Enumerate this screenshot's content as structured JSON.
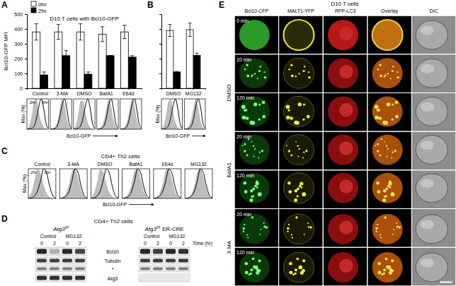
{
  "chart_data": [
    {
      "type": "bar",
      "panel_label": "A",
      "title": "D10 T cells with Bcl10-GFP",
      "y_label": "Bcl10-GFP MFI",
      "categories": [
        "Control",
        "3-MA",
        "DMSO",
        "BafA1",
        "E64d"
      ],
      "series": [
        {
          "name": "0hr",
          "color": "#ffffff",
          "values": [
            380,
            380,
            380,
            365,
            380
          ],
          "errors": [
            55,
            50,
            55,
            50,
            45
          ]
        },
        {
          "name": "2hr",
          "color": "#000000",
          "values": [
            90,
            220,
            95,
            220,
            210
          ],
          "errors": [
            20,
            35,
            15,
            0,
            10
          ]
        }
      ],
      "ylim": [
        0,
        500
      ],
      "yticks": [
        0,
        100,
        200,
        300,
        400,
        500
      ],
      "legend": "upper left"
    },
    {
      "type": "bar",
      "panel_label": "B",
      "categories": [
        "DMSO",
        "MG132"
      ],
      "series": [
        {
          "color": "#ffffff",
          "values": [
            390,
            395
          ],
          "errors": [
            40,
            45
          ]
        },
        {
          "color": "#000000",
          "values": [
            110,
            222
          ],
          "errors": [
            3,
            15
          ]
        }
      ],
      "ylim": [
        0,
        500
      ],
      "yticks": [
        0,
        100,
        200,
        300,
        400,
        500
      ],
      "tick_labels": "x"
    },
    {
      "type": "area",
      "x_label": "Bcl10-GFP",
      "y_label": "Max (%)",
      "tick_labels": false,
      "x": [
        0,
        1,
        2,
        3,
        4,
        5,
        6,
        7,
        8,
        9
      ],
      "xlim": [
        0,
        9
      ],
      "ylim": [
        0,
        100
      ],
      "panels": [
        {
          "series": [
            {
              "type": "area",
              "color": "#bdbdbd",
              "values": [
                2,
                12,
                45,
                90,
                100,
                60,
                25,
                8,
                2,
                0
              ]
            },
            {
              "type": "line",
              "color": "#000000",
              "values": [
                0,
                1,
                3,
                10,
                35,
                75,
                100,
                70,
                20,
                2
              ]
            }
          ],
          "annotations": [
            "2hr",
            "0hr"
          ]
        },
        {
          "series": [
            {
              "type": "area",
              "color": "#bdbdbd",
              "values": [
                0,
                2,
                8,
                25,
                65,
                100,
                80,
                35,
                8,
                1
              ]
            },
            {
              "type": "line",
              "color": "#000000",
              "values": [
                0,
                1,
                3,
                12,
                40,
                80,
                100,
                65,
                18,
                2
              ]
            }
          ]
        },
        {
          "series": [
            {
              "type": "area",
              "color": "#bdbdbd",
              "values": [
                3,
                15,
                50,
                95,
                95,
                55,
                22,
                6,
                1,
                0
              ]
            },
            {
              "type": "line",
              "color": "#000000",
              "values": [
                0,
                1,
                4,
                12,
                38,
                78,
                100,
                68,
                18,
                2
              ]
            }
          ]
        },
        {
          "series": [
            {
              "type": "area",
              "color": "#bdbdbd",
              "values": [
                0,
                2,
                10,
                30,
                70,
                100,
                75,
                30,
                7,
                1
              ]
            },
            {
              "type": "line",
              "color": "#000000",
              "values": [
                0,
                1,
                3,
                11,
                38,
                80,
                100,
                66,
                17,
                2
              ]
            }
          ]
        },
        {
          "series": [
            {
              "type": "area",
              "color": "#bdbdbd",
              "values": [
                0,
                2,
                9,
                28,
                68,
                100,
                78,
                32,
                7,
                1
              ]
            },
            {
              "type": "line",
              "color": "#000000",
              "values": [
                0,
                1,
                3,
                12,
                40,
                82,
                100,
                64,
                16,
                2
              ]
            }
          ]
        }
      ]
    },
    {
      "type": "area",
      "x_label": "Bcl10-GFP",
      "y_label": "Max (%)",
      "tick_labels": false,
      "x": [
        0,
        1,
        2,
        3,
        4,
        5,
        6,
        7,
        8,
        9
      ],
      "xlim": [
        0,
        9
      ],
      "ylim": [
        0,
        100
      ],
      "panels": [
        {
          "series": [
            {
              "type": "area",
              "color": "#bdbdbd",
              "values": [
                2,
                14,
                48,
                92,
                98,
                58,
                24,
                7,
                1,
                0
              ]
            },
            {
              "type": "line",
              "color": "#000000",
              "values": [
                0,
                1,
                4,
                12,
                38,
                78,
                100,
                68,
                18,
                2
              ]
            }
          ]
        },
        {
          "series": [
            {
              "type": "area",
              "color": "#bdbdbd",
              "values": [
                0,
                3,
                12,
                35,
                75,
                100,
                70,
                28,
                6,
                1
              ]
            },
            {
              "type": "line",
              "color": "#000000",
              "values": [
                0,
                1,
                3,
                10,
                36,
                78,
                100,
                70,
                20,
                2
              ]
            }
          ]
        }
      ]
    },
    {
      "type": "area",
      "panel_label": "C",
      "title": "CD4+ Th2 cells",
      "x_label": "Bcl10-GFP",
      "y_label": "Max (%)",
      "tick_labels": false,
      "x": [
        0,
        1,
        2,
        3,
        4,
        5,
        6,
        7,
        8,
        9
      ],
      "xlim": [
        0,
        9
      ],
      "ylim": [
        0,
        100
      ],
      "panels": [
        {
          "title": "Control",
          "series": [
            {
              "type": "area",
              "color": "#bdbdbd",
              "values": [
                4,
                20,
                60,
                100,
                85,
                45,
                18,
                5,
                1,
                0
              ]
            },
            {
              "type": "line",
              "color": "#000000",
              "values": [
                0,
                2,
                8,
                25,
                60,
                100,
                85,
                40,
                10,
                1
              ]
            }
          ],
          "annotations": [
            "2hr",
            "0hr"
          ]
        },
        {
          "title": "3-MA",
          "series": [
            {
              "type": "area",
              "color": "#bdbdbd",
              "values": [
                0,
                4,
                15,
                45,
                90,
                100,
                70,
                30,
                6,
                1
              ]
            },
            {
              "type": "line",
              "color": "#000000",
              "values": [
                0,
                2,
                7,
                22,
                58,
                100,
                88,
                42,
                10,
                1
              ]
            }
          ]
        },
        {
          "title": "DMSO",
          "series": [
            {
              "type": "area",
              "color": "#bdbdbd",
              "values": [
                3,
                18,
                55,
                98,
                90,
                50,
                20,
                6,
                1,
                0
              ]
            },
            {
              "type": "line",
              "color": "#000000",
              "values": [
                0,
                2,
                8,
                24,
                60,
                100,
                86,
                40,
                9,
                1
              ]
            }
          ]
        },
        {
          "title": "BafA1",
          "series": [
            {
              "type": "area",
              "color": "#bdbdbd",
              "values": [
                0,
                4,
                16,
                48,
                92,
                100,
                68,
                28,
                5,
                1
              ]
            },
            {
              "type": "line",
              "color": "#000000",
              "values": [
                0,
                2,
                7,
                23,
                58,
                100,
                87,
                41,
                10,
                1
              ]
            }
          ]
        },
        {
          "title": "E64d",
          "series": [
            {
              "type": "area",
              "color": "#bdbdbd",
              "values": [
                0,
                5,
                18,
                50,
                95,
                100,
                65,
                25,
                5,
                1
              ]
            },
            {
              "type": "line",
              "color": "#000000",
              "values": [
                0,
                2,
                8,
                24,
                60,
                100,
                85,
                40,
                10,
                1
              ]
            }
          ]
        },
        {
          "title": "MG132",
          "series": [
            {
              "type": "area",
              "color": "#bdbdbd",
              "values": [
                0,
                3,
                12,
                40,
                85,
                100,
                75,
                32,
                7,
                1
              ]
            },
            {
              "type": "line",
              "color": "#000000",
              "values": [
                0,
                2,
                7,
                22,
                56,
                100,
                88,
                43,
                11,
                1
              ]
            }
          ]
        }
      ]
    }
  ],
  "blot": {
    "panel_label": "D",
    "title": "CD4+ Th2 cells",
    "time_label": "Time (hr)",
    "rows": [
      "Bcl10",
      "Tubulin",
      "*",
      "Atg3"
    ],
    "blots": [
      {
        "genotype": "Atg3",
        "genotype_superscript": "f/f",
        "conditions": [
          "Control",
          "MG132"
        ],
        "times": [
          0,
          2,
          0,
          2
        ],
        "bands": [
          [
            0.9,
            0.25,
            0.9,
            0.75
          ],
          [
            0.8,
            0.8,
            0.8,
            0.8
          ],
          [
            0.5,
            0.5,
            0.5,
            0.5
          ],
          [
            0.85,
            0.85,
            0.85,
            0.85
          ]
        ]
      },
      {
        "genotype": "Atg3",
        "genotype_superscript": "f/f",
        "genotype_suffix": "ER-CRE",
        "conditions": [
          "Control",
          "MG132"
        ],
        "times": [
          0,
          2,
          0,
          2
        ],
        "bands": [
          [
            0.9,
            0.8,
            0.9,
            0.85
          ],
          [
            0.8,
            0.8,
            0.8,
            0.8
          ],
          [
            0.5,
            0.5,
            0.5,
            0.5
          ],
          [
            0,
            0,
            0,
            0
          ]
        ]
      }
    ]
  },
  "micrographs": {
    "panel_label": "E",
    "title": "D10 T cells",
    "columns": [
      "Bcl10-CFP",
      "MALT1-YFP",
      "RFP-LC3",
      "Overlay",
      "DIC"
    ],
    "baseline": {
      "time": "0 min"
    },
    "treatments": [
      {
        "label": "DMSO",
        "times": [
          "20 min",
          "120 min"
        ]
      },
      {
        "label": "BafA1",
        "times": [
          "20 min",
          "120 min"
        ]
      },
      {
        "label": "3-MA",
        "times": [
          "20 min",
          "120 min"
        ]
      }
    ]
  }
}
